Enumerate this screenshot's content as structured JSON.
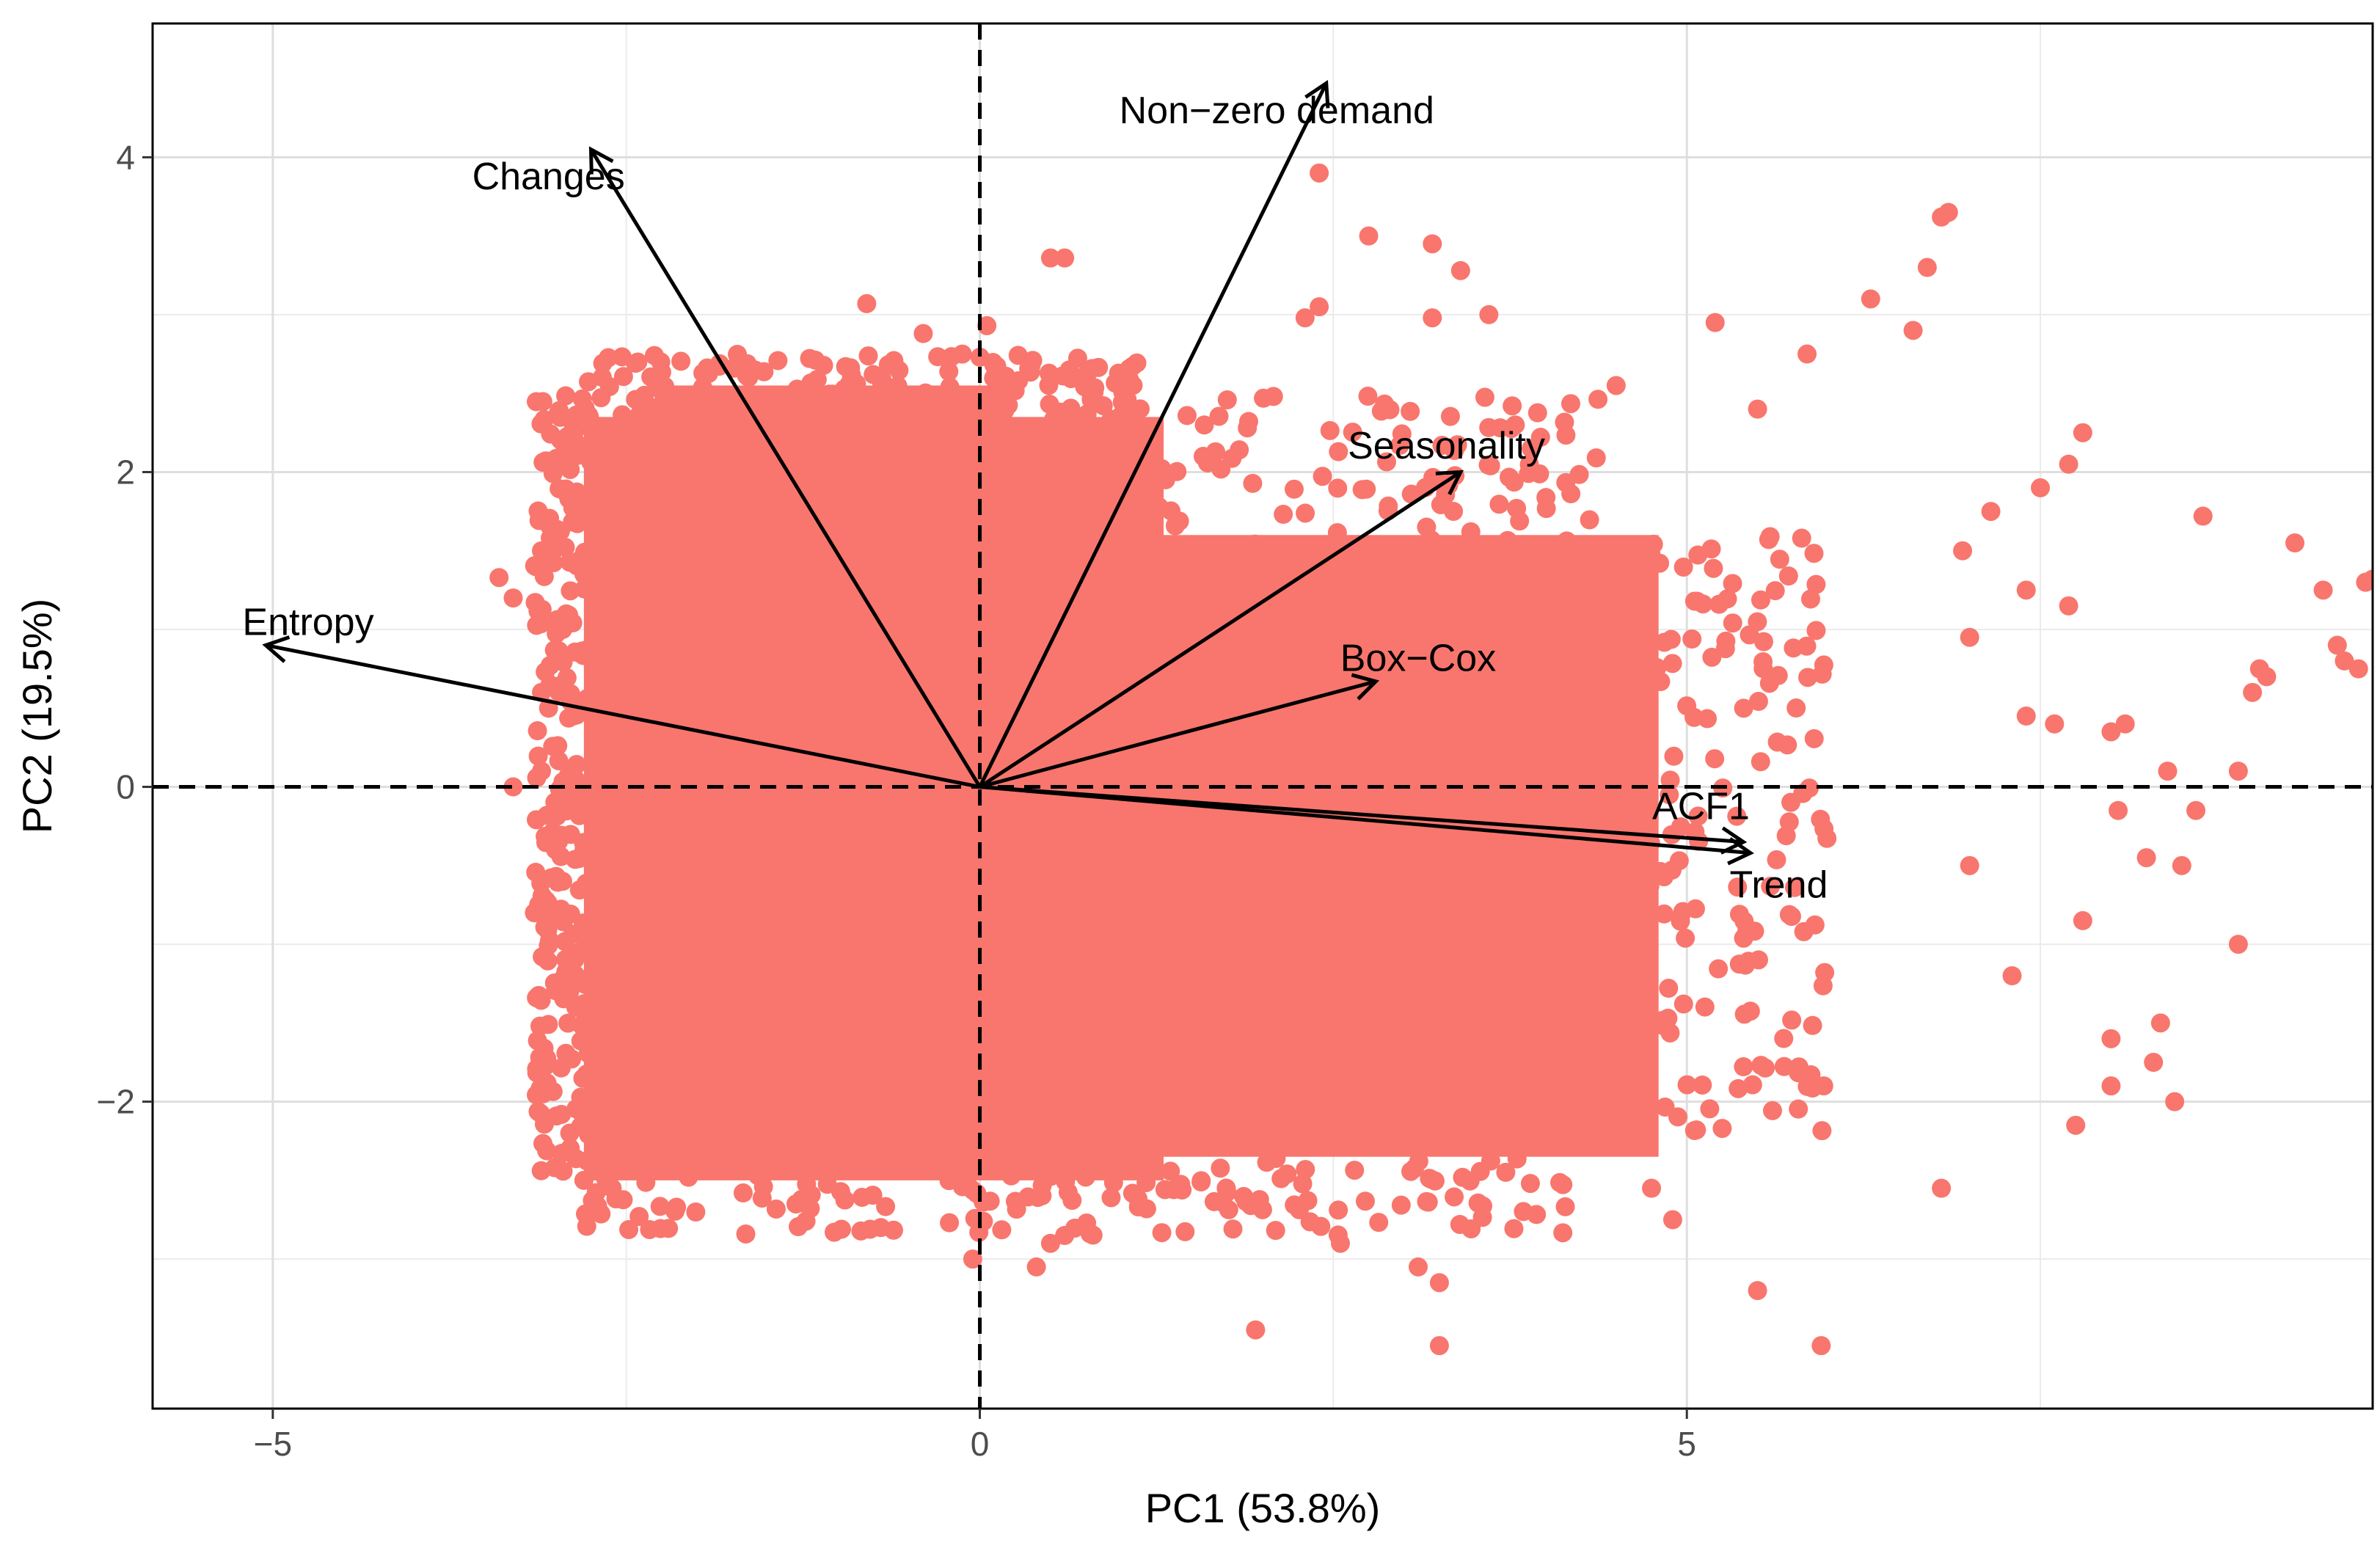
{
  "chart_data": {
    "type": "scatter",
    "title": "",
    "xlabel": "PC1 (53.8%)",
    "ylabel": "PC2 (19.5%)",
    "xlim": [
      -5.85,
      9.85
    ],
    "ylim": [
      -3.95,
      4.85
    ],
    "x_ticks": [
      -5,
      0,
      5
    ],
    "x_tick_labels": [
      "−5",
      "0",
      "5"
    ],
    "y_ticks": [
      -2,
      0,
      2,
      4
    ],
    "y_tick_labels": [
      "−2",
      "0",
      "2",
      "4"
    ],
    "x_minor_ticks": [
      -2.5,
      2.5,
      7.5
    ],
    "y_minor_ticks": [
      -3,
      -1,
      1,
      3
    ],
    "grid": true,
    "reference_lines": {
      "x": 0,
      "y": 0,
      "style": "dashed"
    },
    "points": {
      "color": "#F8766D",
      "description": "dense cloud of observations",
      "cloud_bounds": {
        "x": [
          -2.8,
          4.8
        ],
        "y": [
          -2.5,
          2.6
        ]
      },
      "scattered": [
        [
          -3.4,
          1.33
        ],
        [
          -3.3,
          1.2
        ],
        [
          -3.1,
          1.5
        ],
        [
          -3.3,
          0.0
        ],
        [
          -3.1,
          0.1
        ],
        [
          -3.15,
          -0.8
        ],
        [
          -3.0,
          -0.4
        ],
        [
          -3.05,
          0.5
        ],
        [
          -2.95,
          1.0
        ],
        [
          -2.9,
          -1.3
        ],
        [
          -2.9,
          -2.2
        ],
        [
          -2.8,
          -2.5
        ],
        [
          -2.6,
          -2.55
        ],
        [
          -2.95,
          -0.6
        ],
        [
          -3.1,
          0.6
        ],
        [
          -0.8,
          3.07
        ],
        [
          -0.4,
          2.88
        ],
        [
          0.05,
          2.93
        ],
        [
          0.6,
          3.36
        ],
        [
          0.5,
          3.36
        ],
        [
          0.5,
          -2.9
        ],
        [
          0.6,
          -2.85
        ],
        [
          0.4,
          -3.05
        ],
        [
          -0.7,
          -2.8
        ],
        [
          -1.3,
          -2.65
        ],
        [
          -0.05,
          -3.0
        ],
        [
          1.95,
          -3.45
        ],
        [
          2.4,
          3.9
        ],
        [
          2.4,
          3.05
        ],
        [
          2.75,
          3.5
        ],
        [
          2.3,
          2.98
        ],
        [
          3.2,
          3.45
        ],
        [
          3.4,
          3.28
        ],
        [
          3.2,
          2.98
        ],
        [
          3.6,
          3.0
        ],
        [
          2.55,
          -2.9
        ],
        [
          3.1,
          -3.05
        ],
        [
          3.25,
          -3.15
        ],
        [
          3.25,
          -3.55
        ],
        [
          3.9,
          2.15
        ],
        [
          4.5,
          2.55
        ],
        [
          5.2,
          2.95
        ],
        [
          5.5,
          2.4
        ],
        [
          5.85,
          2.75
        ],
        [
          5.5,
          -3.2
        ],
        [
          5.95,
          -3.55
        ],
        [
          4.75,
          -2.55
        ],
        [
          4.9,
          -2.75
        ],
        [
          6.3,
          3.1
        ],
        [
          6.6,
          2.9
        ],
        [
          6.7,
          3.3
        ],
        [
          6.8,
          3.62
        ],
        [
          6.85,
          3.65
        ],
        [
          7.5,
          1.9
        ],
        [
          7.8,
          2.25
        ],
        [
          7.7,
          2.05
        ],
        [
          7.15,
          1.75
        ],
        [
          7.4,
          1.25
        ],
        [
          7.4,
          0.45
        ],
        [
          7.6,
          0.4
        ],
        [
          7.8,
          -0.85
        ],
        [
          7.3,
          -1.2
        ],
        [
          6.8,
          -2.55
        ],
        [
          7.7,
          1.15
        ],
        [
          8.0,
          0.35
        ],
        [
          8.1,
          0.4
        ],
        [
          8.05,
          -0.15
        ],
        [
          8.25,
          -0.45
        ],
        [
          8.35,
          -1.5
        ],
        [
          8.3,
          -1.75
        ],
        [
          8.0,
          -1.9
        ],
        [
          8.45,
          -2.0
        ],
        [
          8.65,
          1.72
        ],
        [
          8.4,
          0.1
        ],
        [
          8.6,
          -0.15
        ],
        [
          8.9,
          0.1
        ],
        [
          9.0,
          0.6
        ],
        [
          9.05,
          0.75
        ],
        [
          9.1,
          0.7
        ],
        [
          9.3,
          1.55
        ],
        [
          9.5,
          1.25
        ],
        [
          9.6,
          0.9
        ],
        [
          9.65,
          0.8
        ],
        [
          9.75,
          0.75
        ],
        [
          9.8,
          1.3
        ],
        [
          9.85,
          1.32
        ],
        [
          7.75,
          -2.15
        ],
        [
          8.0,
          -1.6
        ],
        [
          8.5,
          -0.5
        ],
        [
          8.9,
          -1.0
        ],
        [
          7.0,
          0.95
        ],
        [
          6.95,
          1.5
        ],
        [
          7.0,
          -0.5
        ]
      ]
    },
    "arrows": [
      {
        "label": "Non−zero demand",
        "x": 2.45,
        "y": 4.47,
        "label_x": 2.1,
        "label_y": 4.3
      },
      {
        "label": "Changes",
        "x": -2.75,
        "y": 4.05,
        "label_x": -3.05,
        "label_y": 3.88
      },
      {
        "label": "Seasonality",
        "x": 3.4,
        "y": 2.0,
        "label_x": 3.3,
        "label_y": 2.17
      },
      {
        "label": "Entropy",
        "x": -5.05,
        "y": 0.9,
        "label_x": -4.75,
        "label_y": 1.05
      },
      {
        "label": "Box−Cox",
        "x": 2.8,
        "y": 0.67,
        "label_x": 3.1,
        "label_y": 0.82
      },
      {
        "label": "ACF1",
        "x": 5.4,
        "y": -0.35,
        "label_x": 5.1,
        "label_y": -0.12
      },
      {
        "label": "Trend",
        "x": 5.45,
        "y": -0.42,
        "label_x": 5.65,
        "label_y": -0.62
      }
    ]
  }
}
